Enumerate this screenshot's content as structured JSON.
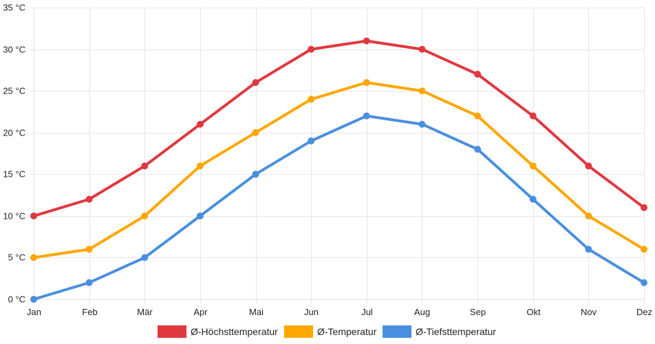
{
  "chart_data": {
    "type": "line",
    "categories": [
      "Jan",
      "Feb",
      "Mär",
      "Apr",
      "Mai",
      "Jun",
      "Jul",
      "Aug",
      "Sep",
      "Okt",
      "Nov",
      "Dez"
    ],
    "y_unit": "°C",
    "ylim": [
      0,
      35
    ],
    "y_ticks": [
      0,
      5,
      10,
      15,
      20,
      25,
      30,
      35
    ],
    "y_tick_labels": [
      "0 °C",
      "5 °C",
      "10 °C",
      "15 °C",
      "20 °C",
      "25 °C",
      "30 °C",
      "35 °C"
    ],
    "grid": true,
    "legend_position": "bottom-center",
    "series": [
      {
        "key": "high",
        "name": "Ø-Höchsttemperatur",
        "color": "#e0383f",
        "values": [
          10,
          12,
          16,
          21,
          26,
          30,
          31,
          30,
          27,
          22,
          16,
          11
        ]
      },
      {
        "key": "avg",
        "name": "Ø-Temperatur",
        "color": "#ffa600",
        "values": [
          5,
          6,
          10,
          16,
          20,
          24,
          26,
          25,
          22,
          16,
          10,
          6
        ]
      },
      {
        "key": "low",
        "name": "Ø-Tiefsttemperatur",
        "color": "#4a8fdf",
        "values": [
          0,
          2,
          5,
          10,
          15,
          19,
          22,
          21,
          18,
          12,
          6,
          2
        ]
      }
    ]
  }
}
